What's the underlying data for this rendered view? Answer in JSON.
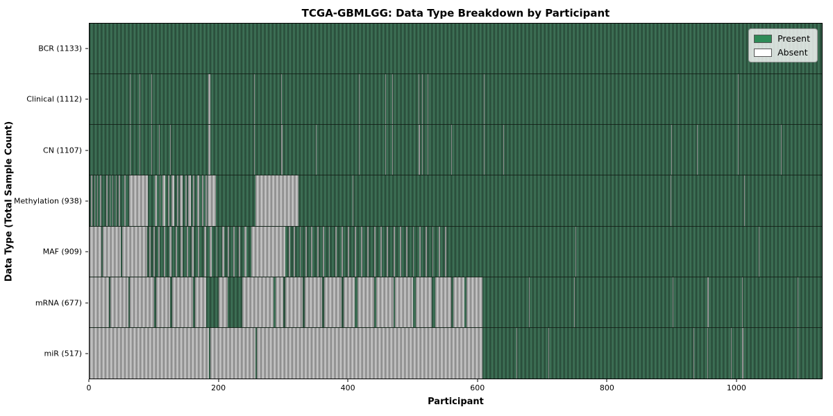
{
  "colors": {
    "present": "#2e8b57",
    "present_light": "#3e7257",
    "present_dark": "#2a4e3b",
    "absent": "#ffffff",
    "absent_light": "#c6c6c6",
    "absent_dark": "#8d8d8d"
  },
  "legend": {
    "present_label": "Present",
    "absent_label": "Absent"
  },
  "chart_data": {
    "type": "heatmap",
    "title": "TCGA-GBMLGG: Data Type Breakdown by Participant",
    "xlabel": "Participant",
    "ylabel": "Data Type (Total Sample Count)",
    "legend_entries": [
      "Present",
      "Absent"
    ],
    "legend_position": "upper right",
    "grid": false,
    "x_range": [
      0,
      1133
    ],
    "x_ticks": [
      0,
      200,
      400,
      600,
      800,
      1000
    ],
    "cell_states": [
      "present",
      "absent"
    ],
    "rows": [
      {
        "name": "bcr",
        "label": "BCR (1133)",
        "data_type": "BCR",
        "total_samples": 1133,
        "absent_runs": []
      },
      {
        "name": "clinical",
        "label": "Clinical (1112)",
        "data_type": "Clinical",
        "total_samples": 1112,
        "absent_runs": [
          [
            62,
            63
          ],
          [
            77,
            78
          ],
          [
            96,
            97
          ],
          [
            184,
            187
          ],
          [
            255,
            256
          ],
          [
            296,
            298
          ],
          [
            417,
            418
          ],
          [
            457,
            459
          ],
          [
            468,
            469
          ],
          [
            509,
            510
          ],
          [
            514,
            515
          ],
          [
            523,
            524
          ],
          [
            559,
            560
          ],
          [
            610,
            611
          ],
          [
            1003,
            1004
          ]
        ]
      },
      {
        "name": "cn",
        "label": "CN (1107)",
        "data_type": "CN",
        "total_samples": 1107,
        "absent_runs": [
          [
            62,
            63
          ],
          [
            77,
            78
          ],
          [
            96,
            97
          ],
          [
            107,
            108
          ],
          [
            125,
            126
          ],
          [
            184,
            187
          ],
          [
            255,
            256
          ],
          [
            296,
            299
          ],
          [
            350,
            351
          ],
          [
            417,
            418
          ],
          [
            457,
            459
          ],
          [
            468,
            469
          ],
          [
            509,
            511
          ],
          [
            514,
            515
          ],
          [
            523,
            524
          ],
          [
            559,
            561
          ],
          [
            610,
            611
          ],
          [
            640,
            641
          ],
          [
            900,
            901
          ],
          [
            940,
            941
          ],
          [
            1003,
            1004
          ],
          [
            1070,
            1071
          ]
        ]
      },
      {
        "name": "methylation",
        "label": "Methylation (938)",
        "data_type": "Methylation",
        "total_samples": 938,
        "absent_runs": [
          [
            2,
            4
          ],
          [
            7,
            9
          ],
          [
            12,
            13
          ],
          [
            16,
            18
          ],
          [
            21,
            22
          ],
          [
            26,
            28
          ],
          [
            31,
            32
          ],
          [
            35,
            37
          ],
          [
            41,
            42
          ],
          [
            45,
            47
          ],
          [
            50,
            51
          ],
          [
            54,
            56
          ],
          [
            61,
            90
          ],
          [
            101,
            104
          ],
          [
            108,
            110
          ],
          [
            113,
            117
          ],
          [
            121,
            123
          ],
          [
            127,
            131
          ],
          [
            135,
            137
          ],
          [
            140,
            144
          ],
          [
            148,
            150
          ],
          [
            153,
            157
          ],
          [
            160,
            162
          ],
          [
            166,
            170
          ],
          [
            174,
            176
          ],
          [
            179,
            181
          ],
          [
            183,
            196
          ],
          [
            257,
            323
          ],
          [
            407,
            408
          ],
          [
            899,
            900
          ],
          [
            1013,
            1014
          ]
        ]
      },
      {
        "name": "maf",
        "label": "MAF (909)",
        "data_type": "MAF",
        "total_samples": 909,
        "absent_runs": [
          [
            0,
            18
          ],
          [
            20,
            48
          ],
          [
            50,
            89
          ],
          [
            92,
            94
          ],
          [
            99,
            101
          ],
          [
            106,
            109
          ],
          [
            115,
            117
          ],
          [
            124,
            127
          ],
          [
            133,
            135
          ],
          [
            141,
            144
          ],
          [
            150,
            152
          ],
          [
            158,
            161
          ],
          [
            168,
            170
          ],
          [
            177,
            180
          ],
          [
            186,
            189
          ],
          [
            196,
            198
          ],
          [
            205,
            208
          ],
          [
            214,
            216
          ],
          [
            222,
            225
          ],
          [
            231,
            233
          ],
          [
            240,
            243
          ],
          [
            250,
            303
          ],
          [
            308,
            310
          ],
          [
            316,
            318
          ],
          [
            325,
            327
          ],
          [
            334,
            336
          ],
          [
            343,
            345
          ],
          [
            352,
            354
          ],
          [
            361,
            363
          ],
          [
            370,
            372
          ],
          [
            380,
            382
          ],
          [
            390,
            392
          ],
          [
            400,
            402
          ],
          [
            410,
            412
          ],
          [
            420,
            422
          ],
          [
            430,
            432
          ],
          [
            440,
            442
          ],
          [
            450,
            452
          ],
          [
            460,
            462
          ],
          [
            470,
            472
          ],
          [
            480,
            482
          ],
          [
            490,
            492
          ],
          [
            500,
            502
          ],
          [
            510,
            512
          ],
          [
            520,
            522
          ],
          [
            530,
            532
          ],
          [
            540,
            542
          ],
          [
            550,
            552
          ],
          [
            752,
            753
          ],
          [
            849,
            850
          ],
          [
            1035,
            1036
          ]
        ]
      },
      {
        "name": "mrna",
        "label": "mRNA (677)",
        "data_type": "mRNA",
        "total_samples": 677,
        "absent_runs": [
          [
            0,
            30
          ],
          [
            32,
            60
          ],
          [
            62,
            100
          ],
          [
            103,
            125
          ],
          [
            128,
            160
          ],
          [
            163,
            180
          ],
          [
            200,
            214
          ],
          [
            236,
            285
          ],
          [
            288,
            300
          ],
          [
            303,
            330
          ],
          [
            333,
            360
          ],
          [
            363,
            390
          ],
          [
            393,
            410
          ],
          [
            415,
            440
          ],
          [
            443,
            470
          ],
          [
            473,
            500
          ],
          [
            505,
            530
          ],
          [
            535,
            560
          ],
          [
            563,
            580
          ],
          [
            583,
            608
          ],
          [
            680,
            681
          ],
          [
            750,
            751
          ],
          [
            902,
            903
          ],
          [
            956,
            958
          ],
          [
            1009,
            1011
          ],
          [
            1095,
            1096
          ]
        ]
      },
      {
        "name": "mir",
        "label": "miR (517)",
        "data_type": "miR",
        "total_samples": 517,
        "absent_runs": [
          [
            0,
            185
          ],
          [
            187,
            257
          ],
          [
            259,
            608
          ],
          [
            661,
            662
          ],
          [
            710,
            711
          ],
          [
            934,
            935
          ],
          [
            956,
            957
          ],
          [
            992,
            993
          ],
          [
            1009,
            1012
          ],
          [
            1095,
            1096
          ]
        ]
      }
    ]
  }
}
